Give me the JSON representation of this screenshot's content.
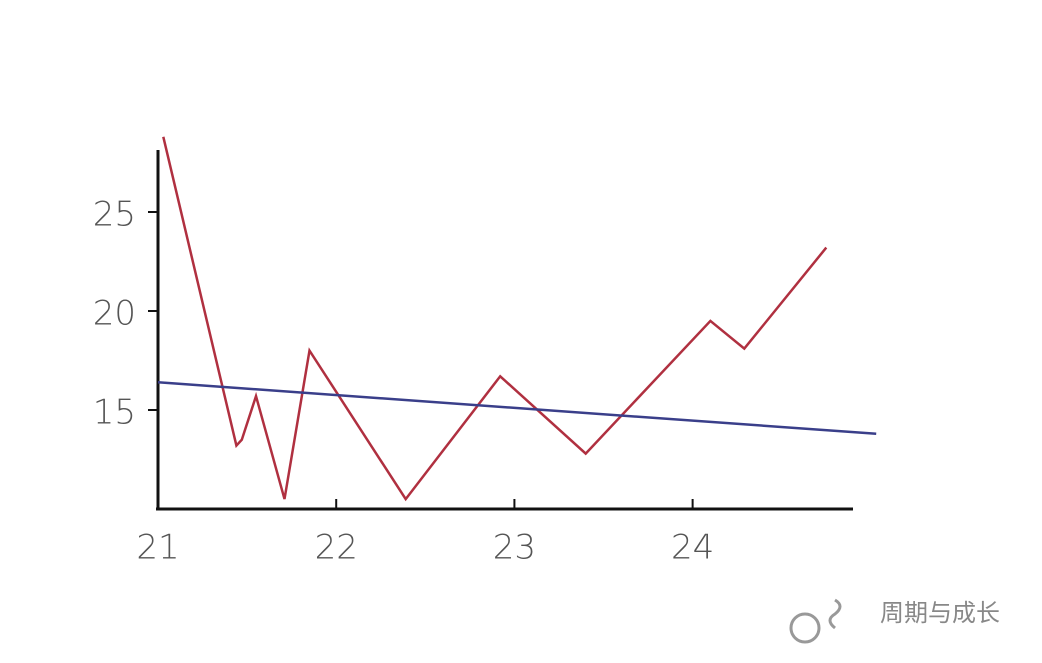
{
  "chart_data": {
    "type": "line",
    "xlim": [
      21,
      24.9
    ],
    "ylim": [
      10,
      28
    ],
    "xticks": [
      21,
      22,
      23,
      24
    ],
    "yticks": [
      15,
      20,
      25
    ],
    "series": [
      {
        "color": "#b03040",
        "x": [
          21.03,
          21.44,
          21.47,
          21.55,
          21.71,
          21.85,
          22.39,
          22.92,
          23.4,
          24.1,
          24.29,
          24.75
        ],
        "values": [
          28.8,
          13.2,
          13.5,
          15.7,
          10.5,
          18.0,
          10.5,
          16.7,
          12.8,
          19.5,
          18.1,
          23.2
        ]
      },
      {
        "color": "#3a3f8a",
        "x": [
          21,
          25.03
        ],
        "values": [
          16.4,
          13.8
        ]
      }
    ],
    "watermark": "周期与成长"
  }
}
